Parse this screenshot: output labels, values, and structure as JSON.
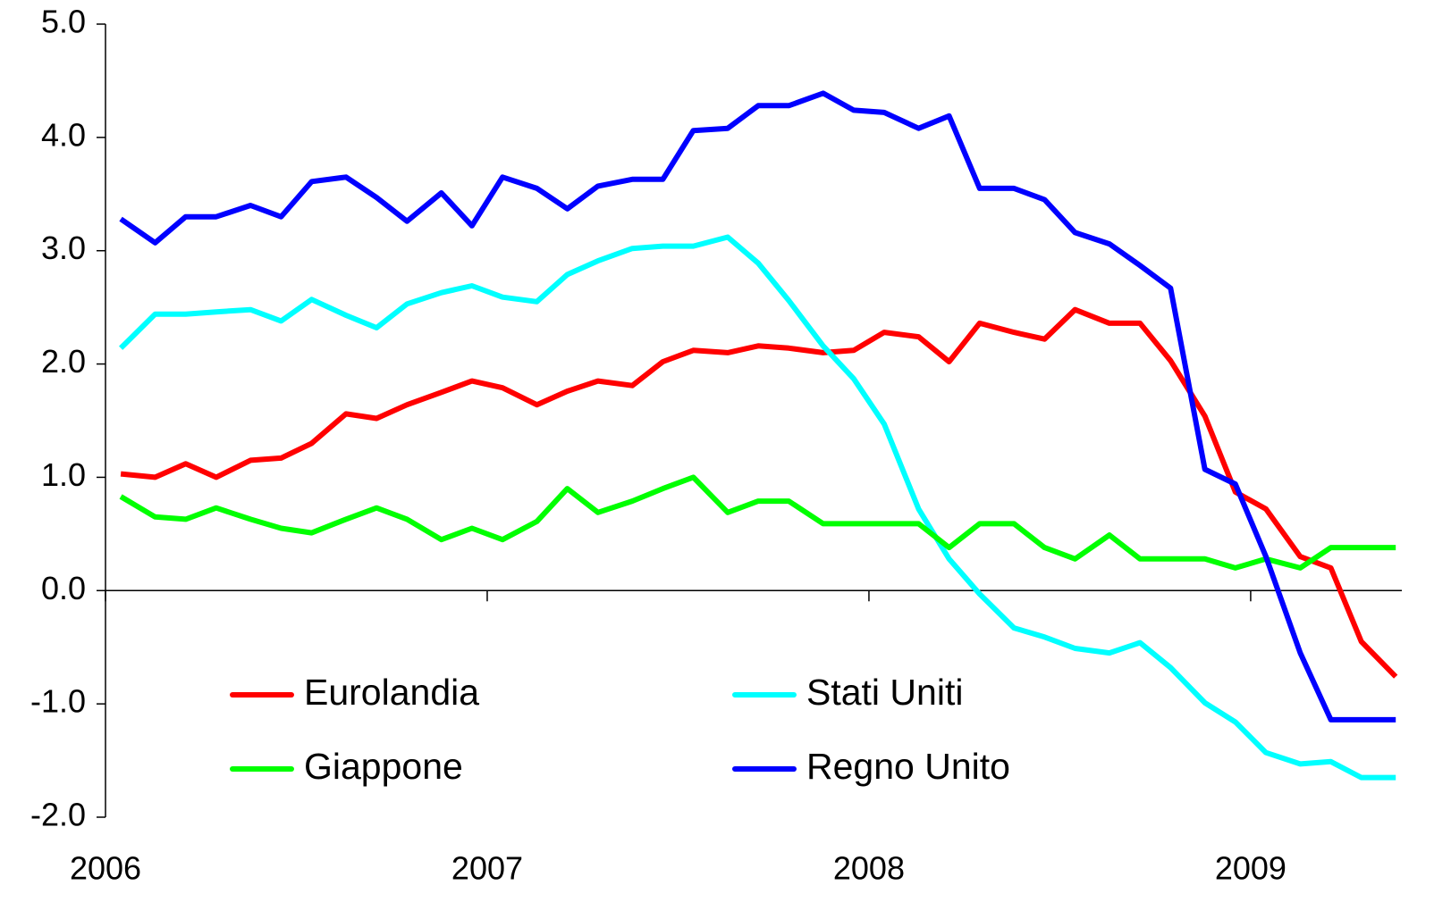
{
  "chart_data": {
    "type": "line",
    "x": [
      2006.04,
      2006.13,
      2006.21,
      2006.29,
      2006.38,
      2006.46,
      2006.54,
      2006.63,
      2006.71,
      2006.79,
      2006.88,
      2006.96,
      2007.04,
      2007.13,
      2007.21,
      2007.29,
      2007.38,
      2007.46,
      2007.54,
      2007.63,
      2007.71,
      2007.79,
      2007.88,
      2007.96,
      2008.04,
      2008.13,
      2008.21,
      2008.29,
      2008.38,
      2008.46,
      2008.54,
      2008.63,
      2008.71,
      2008.79,
      2008.88,
      2008.96,
      2009.04,
      2009.13,
      2009.21,
      2009.29,
      2009.38
    ],
    "series": [
      {
        "name": "Eurolandia",
        "color": "#ff0000",
        "values": [
          1.03,
          1.0,
          1.12,
          1.0,
          1.15,
          1.17,
          1.3,
          1.56,
          1.52,
          1.64,
          1.75,
          1.85,
          1.79,
          1.64,
          1.76,
          1.85,
          1.81,
          2.02,
          2.12,
          2.1,
          2.16,
          2.14,
          2.1,
          2.12,
          2.28,
          2.24,
          2.02,
          2.36,
          2.28,
          2.22,
          2.48,
          2.36,
          2.36,
          2.03,
          1.54,
          0.87,
          0.72,
          0.3,
          0.2,
          -0.45,
          -0.76
        ]
      },
      {
        "name": "Stati Uniti",
        "color": "#00ffff",
        "values": [
          2.14,
          2.44,
          2.44,
          2.46,
          2.48,
          2.38,
          2.57,
          2.43,
          2.32,
          2.53,
          2.63,
          2.69,
          2.59,
          2.55,
          2.79,
          2.91,
          3.02,
          3.04,
          3.04,
          3.12,
          2.89,
          2.56,
          2.16,
          1.87,
          1.47,
          0.72,
          0.28,
          -0.03,
          -0.33,
          -0.41,
          -0.51,
          -0.55,
          -0.46,
          -0.68,
          -0.99,
          -1.16,
          -1.43,
          -1.53,
          -1.51,
          -1.65,
          -1.65
        ]
      },
      {
        "name": "Giappone",
        "color": "#00ff00",
        "values": [
          0.83,
          0.65,
          0.63,
          0.73,
          0.63,
          0.55,
          0.51,
          0.63,
          0.73,
          0.63,
          0.45,
          0.55,
          0.45,
          0.61,
          0.9,
          0.69,
          0.79,
          0.9,
          1.0,
          0.69,
          0.79,
          0.79,
          0.59,
          0.59,
          0.59,
          0.59,
          0.38,
          0.59,
          0.59,
          0.38,
          0.28,
          0.49,
          0.28,
          0.28,
          0.28,
          0.2,
          0.28,
          0.2,
          0.38,
          0.38,
          0.38
        ]
      },
      {
        "name": "Regno Unito",
        "color": "#0000ff",
        "values": [
          3.28,
          3.07,
          3.3,
          3.3,
          3.4,
          3.3,
          3.61,
          3.65,
          3.47,
          3.26,
          3.51,
          3.22,
          3.65,
          3.55,
          3.37,
          3.57,
          3.63,
          3.63,
          4.06,
          4.08,
          4.28,
          4.28,
          4.39,
          4.24,
          4.22,
          4.08,
          4.19,
          3.55,
          3.55,
          3.45,
          3.16,
          3.06,
          2.87,
          2.67,
          1.07,
          0.94,
          0.3,
          -0.55,
          -1.14,
          -1.14,
          -1.14
        ]
      }
    ],
    "xlim": [
      2006,
      2009.396
    ],
    "xticks": [
      2006,
      2007,
      2008,
      2009
    ],
    "ylim": [
      -2,
      5
    ],
    "yticks": [
      {
        "value": -2,
        "label": "-2.0"
      },
      {
        "value": -1,
        "label": "-1.0"
      },
      {
        "value": 0,
        "label": "0.0"
      },
      {
        "value": 1,
        "label": "1.0"
      },
      {
        "value": 2,
        "label": "2.0"
      },
      {
        "value": 3,
        "label": "3.0"
      },
      {
        "value": 4,
        "label": "4.0"
      },
      {
        "value": 5,
        "label": "5.0"
      }
    ],
    "grid": false,
    "legend": "lower-center"
  }
}
